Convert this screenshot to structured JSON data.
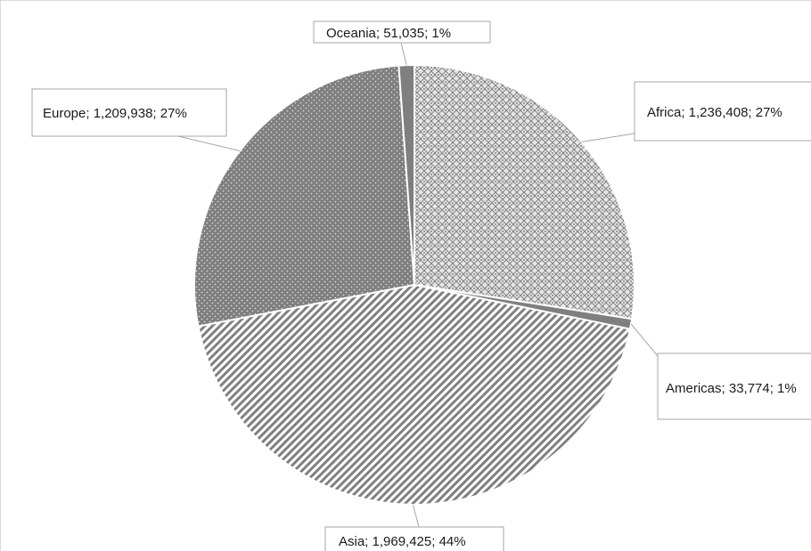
{
  "chart_data": {
    "type": "pie",
    "title": "",
    "slices": [
      {
        "name": "Africa",
        "value": 1236408,
        "percent": 27,
        "label": "Africa; 1,236,408; 27%",
        "pattern": "diamond-grid"
      },
      {
        "name": "Americas",
        "value": 33774,
        "percent": 1,
        "label": "Americas; 33,774; 1%",
        "pattern": "solid-gray"
      },
      {
        "name": "Asia",
        "value": 1969425,
        "percent": 44,
        "label": "Asia; 1,969,425; 44%",
        "pattern": "diagonal-stripes"
      },
      {
        "name": "Europe",
        "value": 1209938,
        "percent": 27,
        "label": "Europe; 1,209,938; 27%",
        "pattern": "dots"
      },
      {
        "name": "Oceania",
        "value": 51035,
        "percent": 1,
        "label": "Oceania; 51,035; 1%",
        "pattern": "solid-gray"
      }
    ],
    "legend": "none",
    "colors": {
      "fill": "#7f7f7f",
      "light": "#e8e8e8",
      "border": "#ffffff",
      "leader": "#a6a6a6"
    }
  }
}
